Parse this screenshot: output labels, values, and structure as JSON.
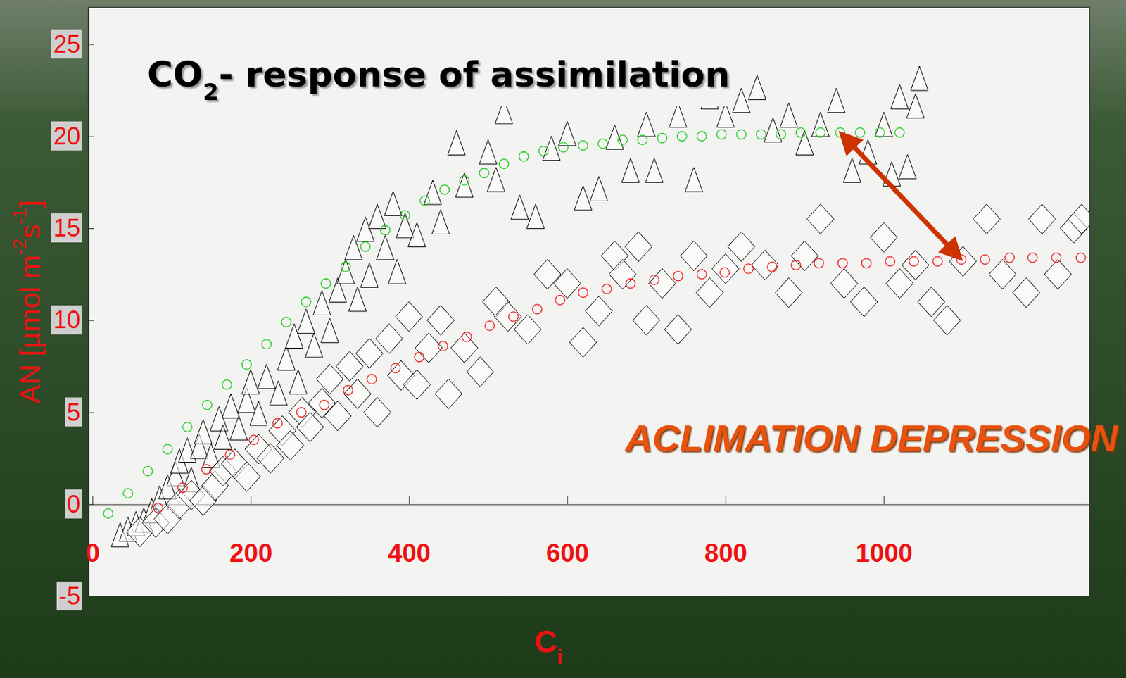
{
  "chart_data": {
    "type": "scatter",
    "title": "CO2- response of assimilation",
    "xlabel": "Ci",
    "ylabel": "AN [µmol m-2s-1]",
    "annotation": "ACLIMATION DEPRESSION",
    "xlim": [
      -5,
      1260
    ],
    "ylim": [
      -5,
      27
    ],
    "xticks": [
      0,
      200,
      400,
      600,
      800,
      1000
    ],
    "yticks": [
      -5,
      0,
      5,
      10,
      15,
      20,
      25
    ],
    "grid": false,
    "series": [
      {
        "marker": "triangle",
        "color": "#000000",
        "x": [
          35,
          45,
          55,
          65,
          75,
          85,
          95,
          105,
          110,
          120,
          125,
          135,
          140,
          150,
          160,
          165,
          175,
          185,
          195,
          200,
          210,
          220,
          235,
          245,
          255,
          260,
          270,
          280,
          290,
          300,
          310,
          320,
          330,
          335,
          345,
          350,
          360,
          370,
          380,
          385,
          395,
          410,
          430,
          440,
          460,
          470,
          500,
          510,
          520,
          540,
          560,
          580,
          600,
          620,
          640,
          660,
          680,
          700,
          710,
          740,
          760,
          780,
          800,
          820,
          840,
          860,
          880,
          900,
          920,
          940,
          960,
          980,
          1000,
          1020,
          1040,
          1045,
          1010,
          1030
        ],
        "values": [
          -1.8,
          -1.5,
          -1.2,
          -1.0,
          -0.5,
          0.2,
          0.8,
          1.5,
          2.2,
          2.8,
          1.2,
          3.0,
          3.8,
          2.5,
          4.5,
          3.5,
          5.2,
          4.0,
          5.5,
          6.5,
          4.8,
          6.8,
          5.9,
          7.8,
          9.0,
          6.5,
          9.8,
          8.5,
          10.8,
          9.3,
          11.5,
          12.5,
          13.8,
          11.0,
          14.8,
          12.3,
          15.5,
          13.8,
          16.2,
          12.5,
          15.0,
          14.5,
          16.8,
          15.2,
          19.5,
          17.2,
          19.0,
          17.5,
          21.2,
          16.0,
          15.5,
          19.2,
          20.0,
          16.5,
          17.0,
          19.8,
          18.0,
          20.5,
          18.0,
          21.0,
          17.5,
          22.0,
          21.0,
          21.8,
          22.5,
          20.2,
          21.0,
          19.5,
          20.5,
          21.8,
          18.0,
          19.0,
          20.5,
          22.0,
          21.5,
          23.0,
          17.8,
          18.2
        ]
      },
      {
        "marker": "diamond",
        "color": "#000000",
        "x": [
          60,
          80,
          95,
          110,
          125,
          140,
          155,
          165,
          180,
          195,
          210,
          225,
          240,
          250,
          265,
          275,
          290,
          300,
          310,
          325,
          335,
          350,
          360,
          375,
          390,
          400,
          410,
          425,
          440,
          450,
          470,
          490,
          510,
          525,
          550,
          575,
          600,
          620,
          640,
          660,
          670,
          690,
          700,
          720,
          740,
          760,
          780,
          800,
          820,
          850,
          880,
          900,
          920,
          950,
          975,
          1000,
          1020,
          1040,
          1060,
          1080,
          1100,
          1130,
          1150,
          1180,
          1200,
          1220,
          1240,
          1250
        ],
        "values": [
          -1.5,
          -1.0,
          -0.8,
          0.0,
          0.5,
          0.2,
          1.0,
          1.8,
          2.2,
          1.5,
          3.0,
          2.5,
          4.0,
          3.2,
          5.0,
          4.2,
          5.5,
          6.8,
          4.8,
          7.5,
          6.0,
          8.2,
          5.0,
          9.0,
          7.0,
          10.2,
          6.5,
          8.5,
          10.0,
          6.0,
          8.5,
          7.2,
          11.0,
          10.2,
          9.5,
          12.5,
          12.0,
          8.8,
          10.5,
          13.5,
          12.5,
          14.0,
          10.0,
          12.0,
          9.5,
          13.5,
          11.5,
          12.8,
          14.0,
          13.0,
          11.5,
          13.5,
          15.5,
          12.0,
          11.0,
          14.5,
          12.0,
          13.0,
          11.0,
          10.0,
          13.2,
          15.5,
          12.5,
          11.5,
          15.5,
          12.5,
          15.0,
          15.5
        ]
      },
      {
        "marker": "circle",
        "color": "#22cc22",
        "x": [
          20,
          45,
          70,
          95,
          120,
          145,
          170,
          195,
          220,
          245,
          270,
          295,
          320,
          345,
          370,
          395,
          420,
          445,
          470,
          495,
          520,
          545,
          570,
          595,
          620,
          645,
          670,
          695,
          720,
          745,
          770,
          795,
          820,
          845,
          870,
          895,
          920,
          945,
          970,
          995,
          1020
        ],
        "values": [
          -0.5,
          0.6,
          1.8,
          3.0,
          4.2,
          5.4,
          6.5,
          7.6,
          8.7,
          9.9,
          11.0,
          12.0,
          12.9,
          14.0,
          14.9,
          15.7,
          16.5,
          17.1,
          17.6,
          18.0,
          18.5,
          18.9,
          19.2,
          19.4,
          19.5,
          19.6,
          19.8,
          19.8,
          19.9,
          20.0,
          20.0,
          20.1,
          20.1,
          20.1,
          20.1,
          20.2,
          20.2,
          20.2,
          20.2,
          20.2,
          20.2
        ]
      },
      {
        "marker": "circle",
        "color": "#ee2222",
        "x": [
          83,
          114,
          144,
          174,
          204,
          234,
          264,
          293,
          323,
          353,
          383,
          413,
          443,
          473,
          502,
          532,
          562,
          591,
          620,
          650,
          680,
          710,
          740,
          770,
          799,
          829,
          859,
          889,
          918,
          948,
          978,
          1008,
          1038,
          1068,
          1098,
          1128,
          1159,
          1188,
          1218,
          1249
        ],
        "values": [
          -0.2,
          0.9,
          1.9,
          2.7,
          3.5,
          4.4,
          5.0,
          5.4,
          6.2,
          6.8,
          7.4,
          8.0,
          8.6,
          9.1,
          9.7,
          10.2,
          10.6,
          11.1,
          11.5,
          11.7,
          12.0,
          12.2,
          12.4,
          12.5,
          12.6,
          12.8,
          12.9,
          13.0,
          13.1,
          13.1,
          13.1,
          13.2,
          13.2,
          13.2,
          13.3,
          13.3,
          13.4,
          13.4,
          13.4,
          13.4
        ]
      }
    ]
  }
}
